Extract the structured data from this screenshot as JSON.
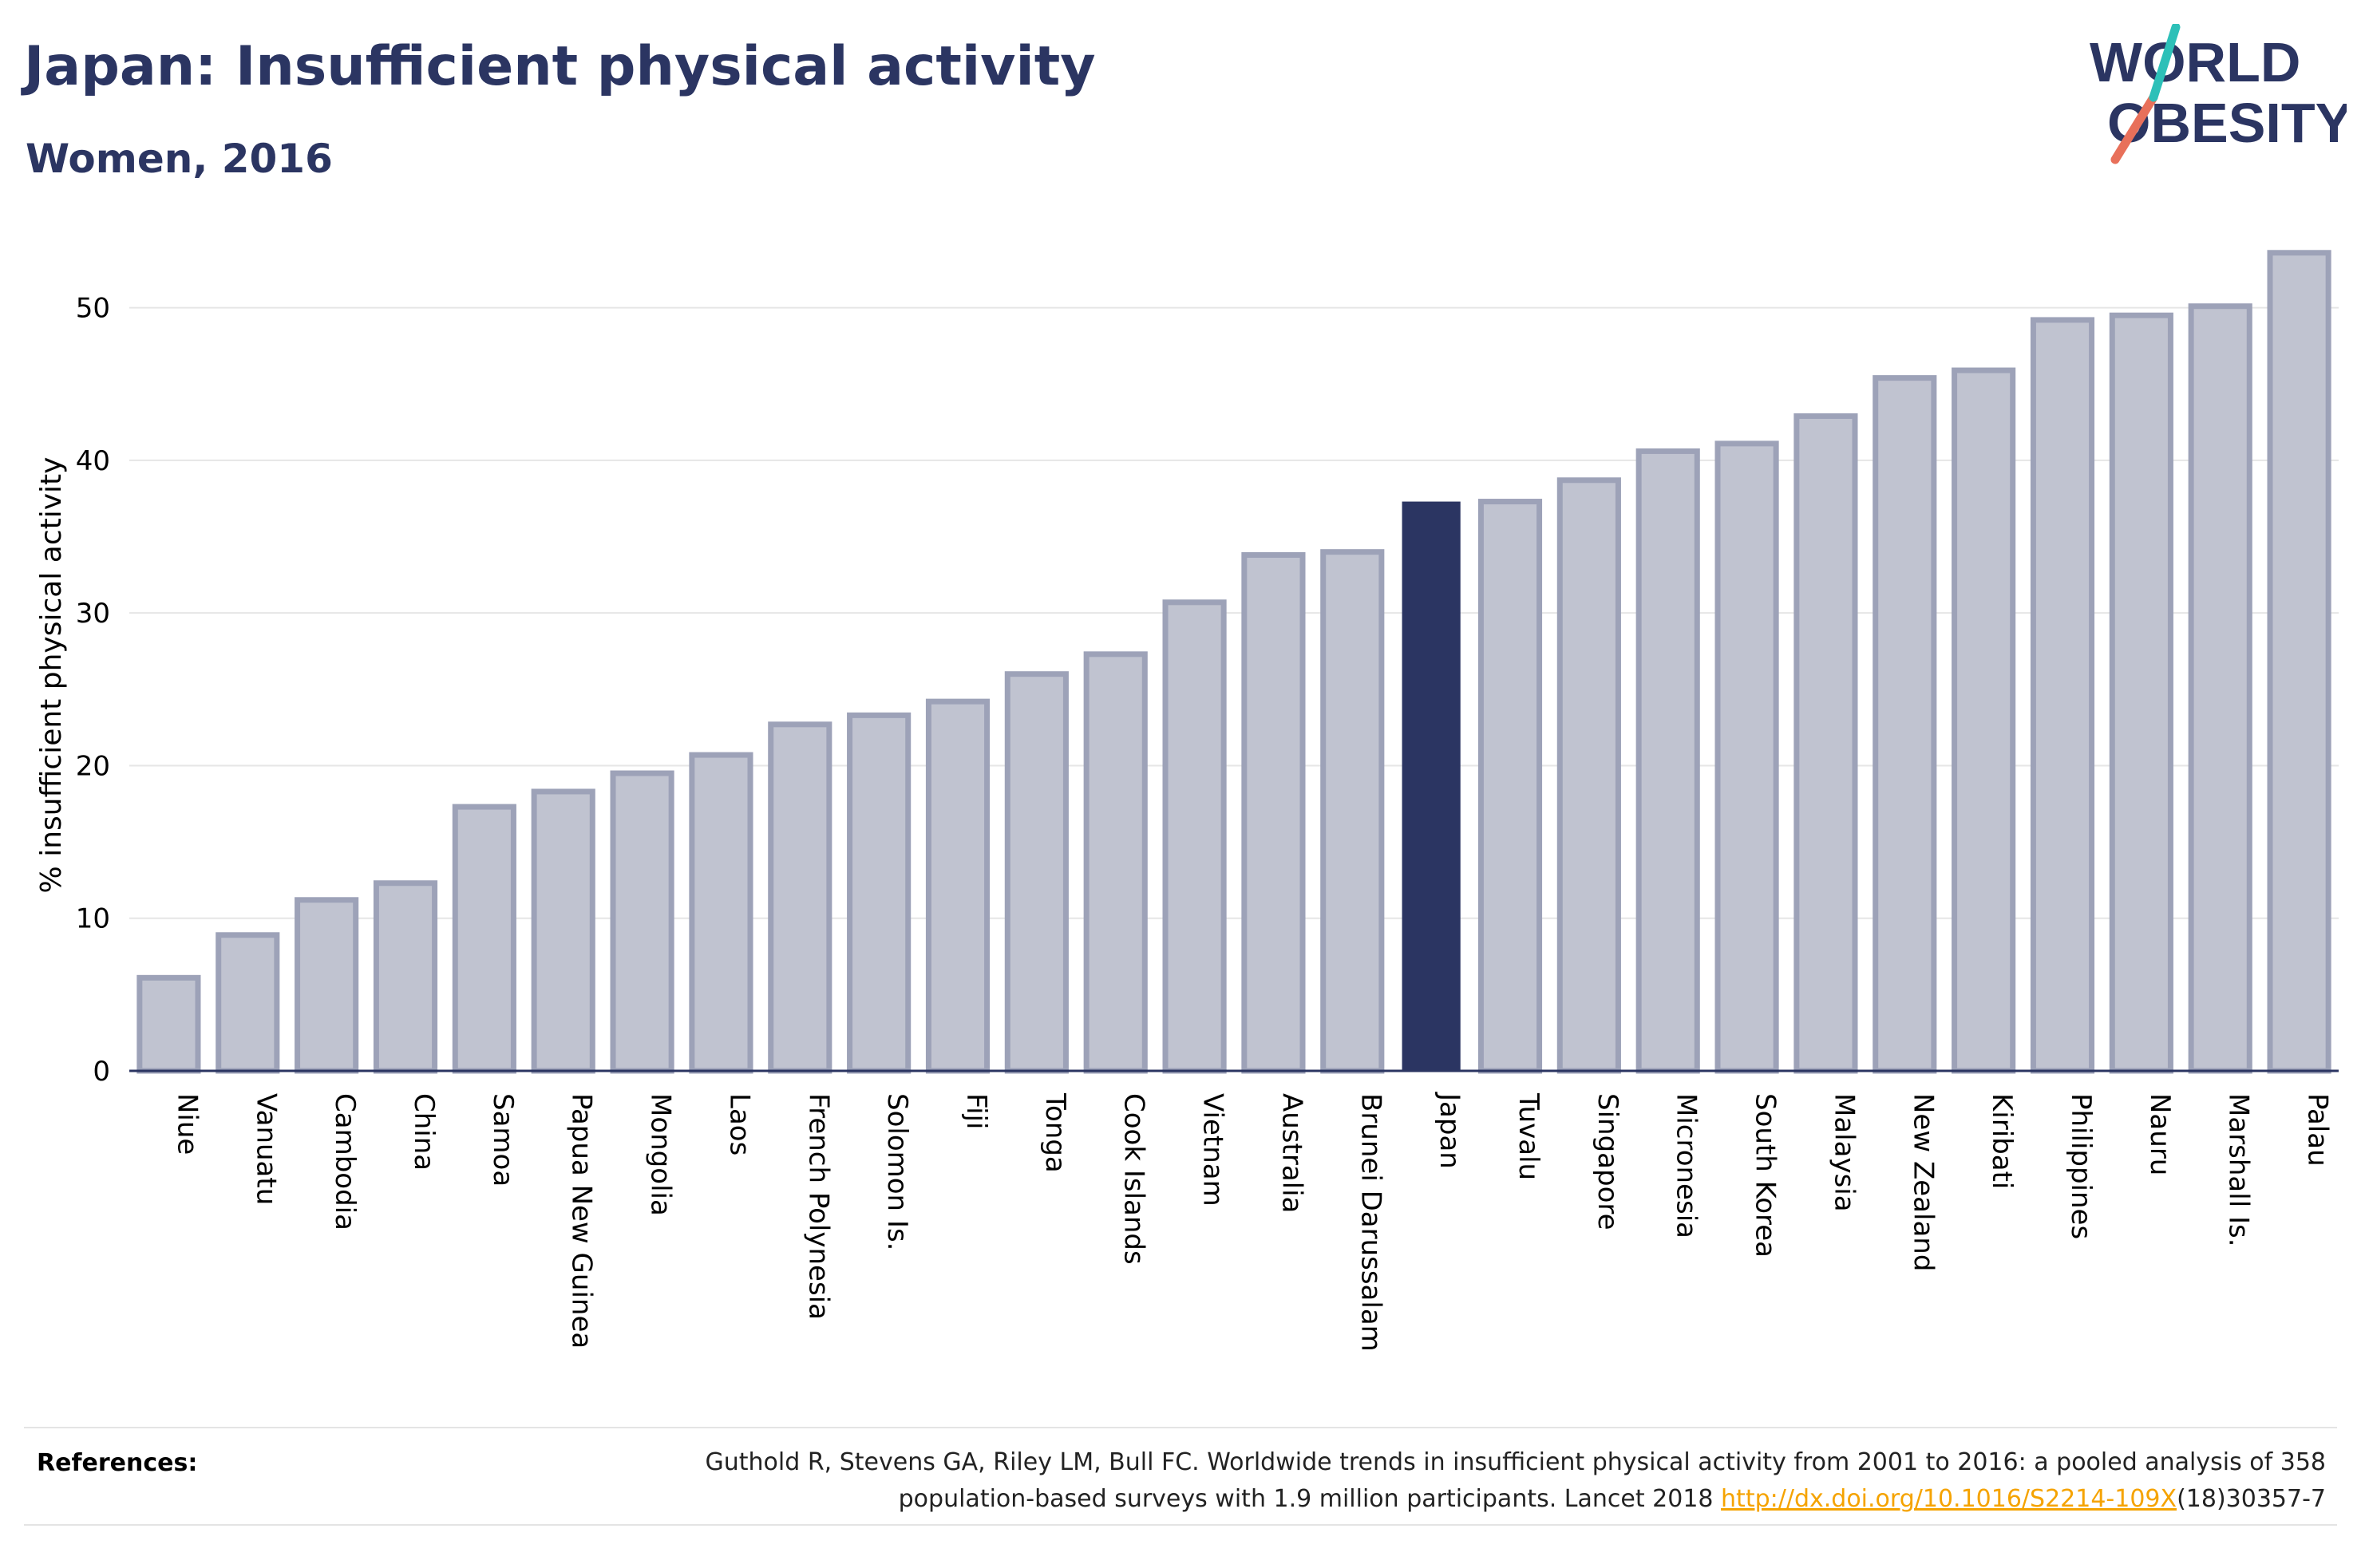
{
  "title": "Japan: Insufficient physical activity",
  "subtitle": "Women, 2016",
  "logo": {
    "line1": "WORLD",
    "line2": "OBESITY",
    "text_color": "#2b3562",
    "slash_colors": [
      "#e8705a",
      "#2dc0b8"
    ]
  },
  "colors": {
    "bar_default": "#c0c3d0",
    "bar_stroke": "#9da2b8",
    "bar_highlight": "#2b3562",
    "axis": "#2b3562",
    "grid": "#e6e6e6"
  },
  "chart_data": {
    "type": "bar",
    "ylabel": "% insufficient physical activity",
    "ylim": [
      0,
      55
    ],
    "yticks": [
      0,
      10,
      20,
      30,
      40,
      50
    ],
    "grid": true,
    "highlight": "Japan",
    "categories": [
      "Niue",
      "Vanuatu",
      "Cambodia",
      "China",
      "Samoa",
      "Papua New Guinea",
      "Mongolia",
      "Laos",
      "French Polynesia",
      "Solomon Is.",
      "Fiji",
      "Tonga",
      "Cook Islands",
      "Vietnam",
      "Australia",
      "Brunei Darussalam",
      "Japan",
      "Tuvalu",
      "Singapore",
      "Micronesia",
      "South Korea",
      "Malaysia",
      "New Zealand",
      "Kiribati",
      "Philippines",
      "Nauru",
      "Marshall Is.",
      "Palau"
    ],
    "values": [
      6.1,
      8.9,
      11.2,
      12.3,
      17.3,
      18.3,
      19.5,
      20.7,
      22.7,
      23.3,
      24.2,
      26.0,
      27.3,
      30.7,
      33.8,
      34.0,
      37.3,
      37.3,
      38.7,
      40.6,
      41.1,
      42.9,
      45.4,
      45.9,
      49.2,
      49.5,
      50.1,
      53.6
    ]
  },
  "references": {
    "label": "References:",
    "line1": "Guthold R, Stevens GA, Riley LM, Bull FC. Worldwide trends in insufficient physical activity from 2001 to 2016: a pooled analysis of 358",
    "line2_prefix": "population-based surveys with 1.9 million participants. Lancet 2018 ",
    "link": "http://dx.doi.org/10.1016/S2214-109X",
    "line2_suffix": "(18)30357-7"
  }
}
